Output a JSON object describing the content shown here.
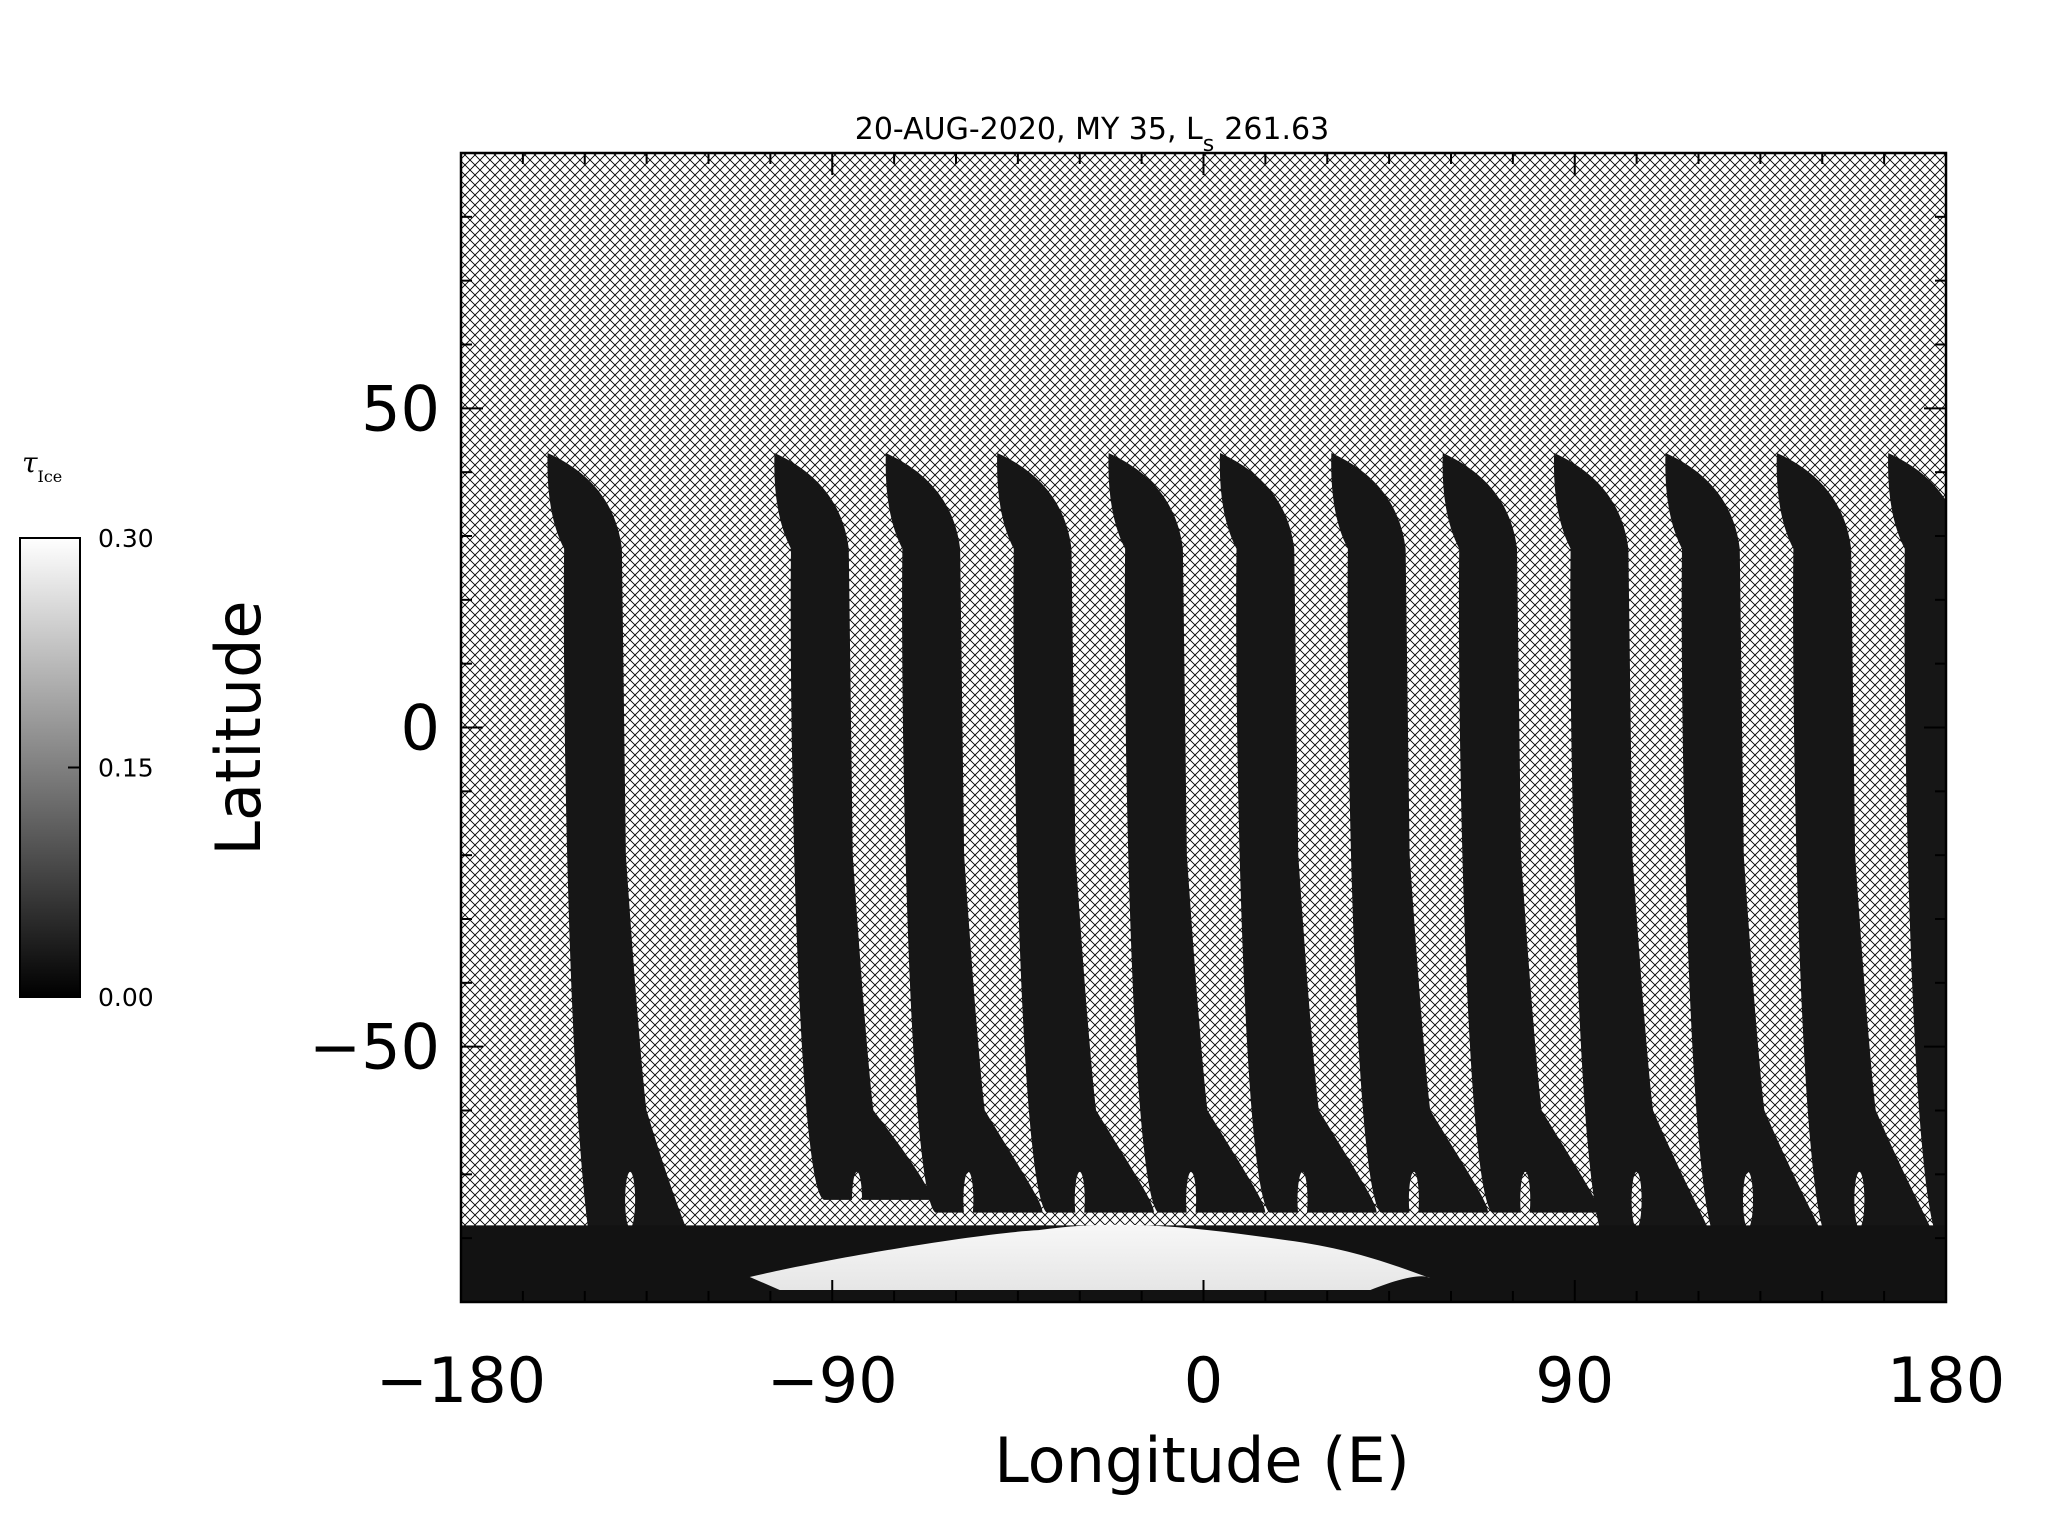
{
  "chart_data": {
    "type": "heatmap",
    "title": "20-AUG-2020, MY 35,  L",
    "title_sub": "s",
    "title_tail": "261.63",
    "xlabel": "Longitude (E)",
    "ylabel": "Latitude",
    "xlim": [
      -180,
      180
    ],
    "ylim": [
      -90,
      90
    ],
    "x_ticks": [
      -180,
      -90,
      0,
      90,
      180
    ],
    "x_tick_labels": [
      "−180",
      "−90",
      "0",
      "90",
      "180"
    ],
    "y_ticks": [
      -50,
      0,
      50
    ],
    "y_tick_labels": [
      "−50",
      "0",
      "50"
    ],
    "x_minor_step": 15,
    "y_minor_step": 10,
    "colormap": "grayscale",
    "no_data_pattern": "crosshatch",
    "colorbar": {
      "title": "τ",
      "title_sub": "Ice",
      "range": [
        0.0,
        0.3
      ],
      "tick_labels": [
        "0.30",
        "0.15",
        "0.00"
      ]
    },
    "swaths": [
      {
        "lon_center": -153,
        "lat_top": 43,
        "lat_bottom": -86
      },
      {
        "lon_center": -98,
        "lat_top": 43,
        "lat_bottom": -74
      },
      {
        "lon_center": -71,
        "lat_top": 43,
        "lat_bottom": -76
      },
      {
        "lon_center": -44,
        "lat_top": 43,
        "lat_bottom": -76
      },
      {
        "lon_center": -17,
        "lat_top": 43,
        "lat_bottom": -76
      },
      {
        "lon_center": 10,
        "lat_top": 43,
        "lat_bottom": -76
      },
      {
        "lon_center": 37,
        "lat_top": 43,
        "lat_bottom": -76
      },
      {
        "lon_center": 64,
        "lat_top": 43,
        "lat_bottom": -76
      },
      {
        "lon_center": 91,
        "lat_top": 43,
        "lat_bottom": -80
      },
      {
        "lon_center": 118,
        "lat_top": 43,
        "lat_bottom": -80
      },
      {
        "lon_center": 145,
        "lat_top": 43,
        "lat_bottom": -80
      },
      {
        "lon_center": 172,
        "lat_top": 43,
        "lat_bottom": -80
      }
    ],
    "south_polar_ice": {
      "lon_range": [
        -110,
        55
      ],
      "lat_top": -80,
      "value": 0.3
    }
  }
}
